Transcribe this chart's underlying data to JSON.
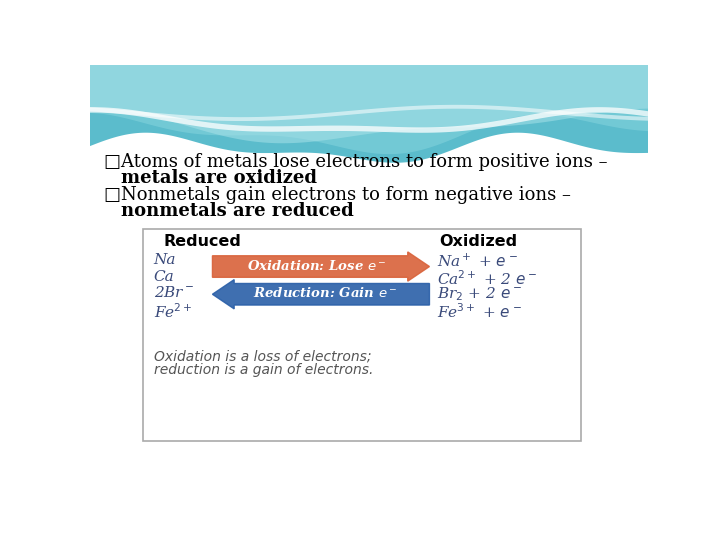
{
  "bg_color": "#ffffff",
  "text_line1": "□Atoms of metals lose electrons to form positive ions –",
  "text_line1b": "metals are oxidized",
  "text_line2": "□Nonmetals gain electrons to form negative ions –",
  "text_line2b": "nonmetals are reduced",
  "reduced_label": "Reduced",
  "oxidized_label": "Oxidized",
  "left_items": [
    "Na",
    "Ca",
    "2Br",
    "Fe"
  ],
  "oxidation_arrow_text": "Oxidation: Lose e",
  "reduction_arrow_text": "Reduction: Gain e",
  "oxidation_arrow_color": "#d9623a",
  "reduction_arrow_color": "#2a5fa8",
  "footer_line1": "Oxidation is a loss of electrons;",
  "footer_line2": "reduction is a gain of electrons.",
  "wave_teal1": "#5bbccc",
  "wave_teal2": "#7dcfda",
  "wave_light": "#aee4ea",
  "wave_white": "#e8f7f9"
}
